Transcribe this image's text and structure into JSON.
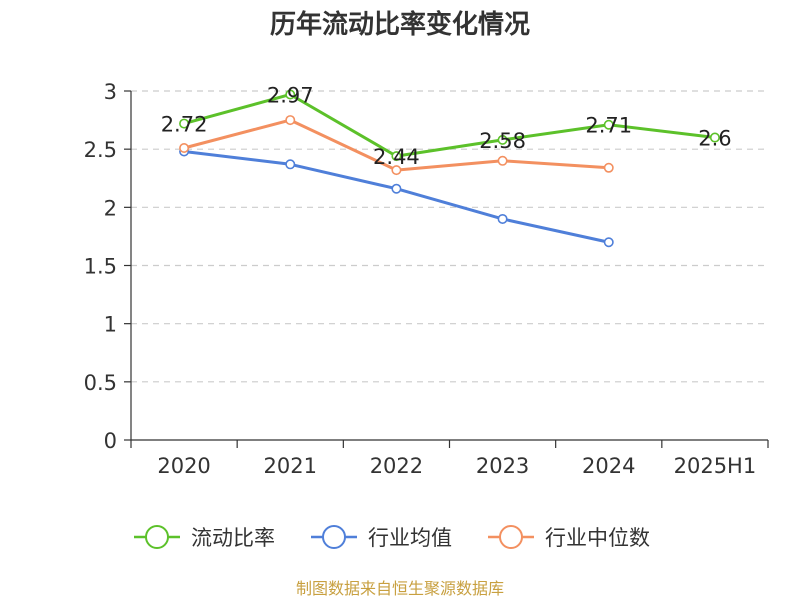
{
  "chart_data": {
    "type": "line",
    "title": "历年流动比率变化情况",
    "categories": [
      "2020",
      "2021",
      "2022",
      "2023",
      "2024",
      "2025H1"
    ],
    "ylim": [
      0,
      3
    ],
    "yticks": [
      "0",
      "0.5",
      "1",
      "1.5",
      "2",
      "2.5",
      "3"
    ],
    "grid": true,
    "legend_position": "bottom",
    "series": [
      {
        "name": "流动比率",
        "color": "#5cc12a",
        "values": [
          2.72,
          2.97,
          2.44,
          2.58,
          2.71,
          2.6
        ],
        "labels": [
          "2.72",
          "2.97",
          "2.44",
          "2.58",
          "2.71",
          "2.6"
        ]
      },
      {
        "name": "行业均值",
        "color": "#4f7fd9",
        "values": [
          2.48,
          2.37,
          2.16,
          1.9,
          1.7,
          null
        ]
      },
      {
        "name": "行业中位数",
        "color": "#f39060",
        "values": [
          2.51,
          2.75,
          2.32,
          2.4,
          2.34,
          null
        ]
      }
    ]
  },
  "source": "制图数据来自恒生聚源数据库"
}
